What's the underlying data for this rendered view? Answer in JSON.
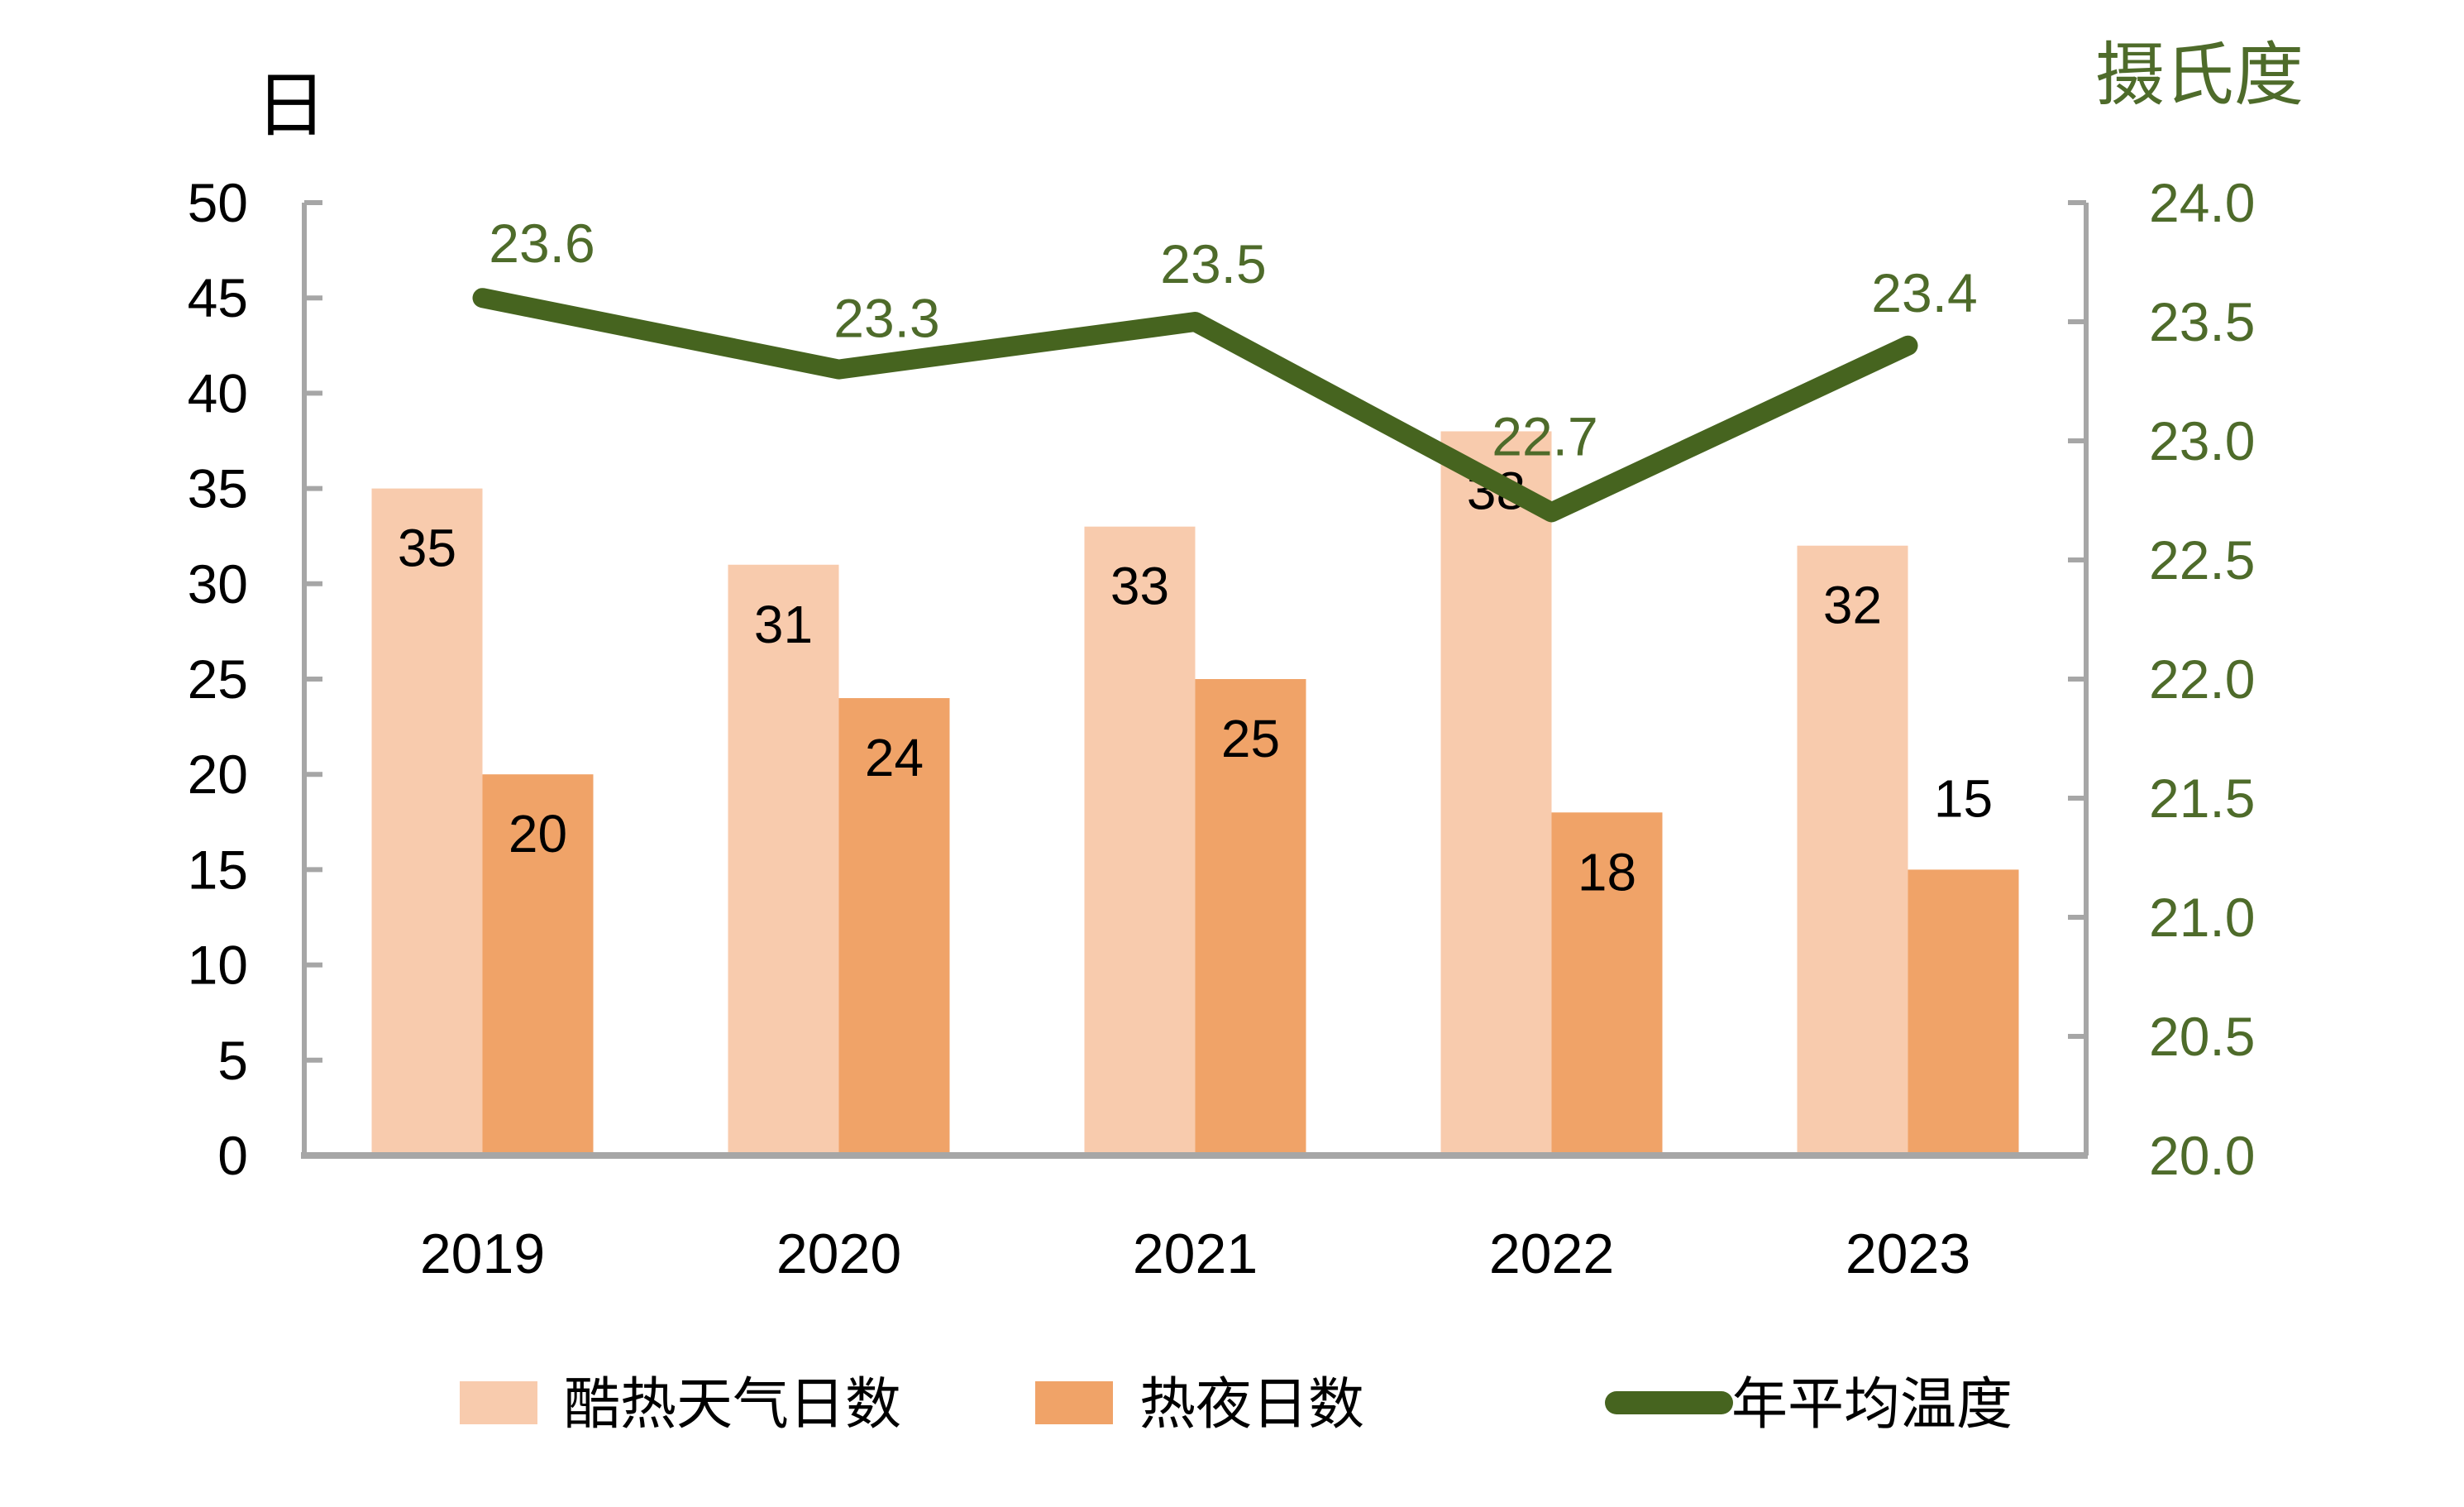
{
  "chart_data": {
    "type": "combo-bar-line",
    "categories": [
      "2019",
      "2020",
      "2021",
      "2022",
      "2023"
    ],
    "series": [
      {
        "name": "酷热天气日数",
        "type": "bar",
        "values": [
          35,
          31,
          33,
          38,
          32
        ],
        "data_labels": [
          "35",
          "31",
          "33",
          "38",
          "32"
        ],
        "axis": "left"
      },
      {
        "name": "热夜日数",
        "type": "bar",
        "values": [
          20,
          24,
          25,
          18,
          15
        ],
        "data_labels": [
          "20",
          "24",
          "25",
          "18",
          "15"
        ],
        "axis": "left"
      },
      {
        "name": "年平均温度",
        "type": "line",
        "values": [
          23.6,
          23.3,
          23.5,
          22.7,
          23.4
        ],
        "data_labels": [
          "23.6",
          "23.3",
          "23.5",
          "22.7",
          "23.4"
        ],
        "axis": "right"
      }
    ],
    "left_axis": {
      "title": "日",
      "min": 0,
      "max": 50,
      "step": 5,
      "tick_labels": [
        "50",
        "45",
        "40",
        "35",
        "30",
        "25",
        "20",
        "15",
        "10",
        "5",
        "0"
      ]
    },
    "right_axis": {
      "title": "摄氏度",
      "min": 20.0,
      "max": 24.0,
      "step": 0.5,
      "tick_labels": [
        "24.0",
        "23.5",
        "23.0",
        "22.5",
        "22.0",
        "21.5",
        "21.0",
        "20.5",
        "20.0"
      ]
    },
    "grid": false,
    "legend_position": "bottom",
    "legend": [
      "酷热天气日数",
      "热夜日数",
      "年平均温度"
    ]
  },
  "palette": {
    "bar_light": "#F8CBAD",
    "bar_dark": "#F0A368",
    "line_green": "#46641F",
    "green_text": "#4E6B2A",
    "axis_gray": "#A6A6A6",
    "label_black": "#000000"
  },
  "titles": {
    "left_axis_title": "日",
    "right_axis_title": "摄氏度"
  },
  "legend": {
    "items": [
      {
        "label": "酷热天气日数",
        "swatch": "bar-light"
      },
      {
        "label": "热夜日数",
        "swatch": "bar-dark"
      },
      {
        "label": "年平均温度",
        "swatch": "line-green"
      }
    ]
  }
}
